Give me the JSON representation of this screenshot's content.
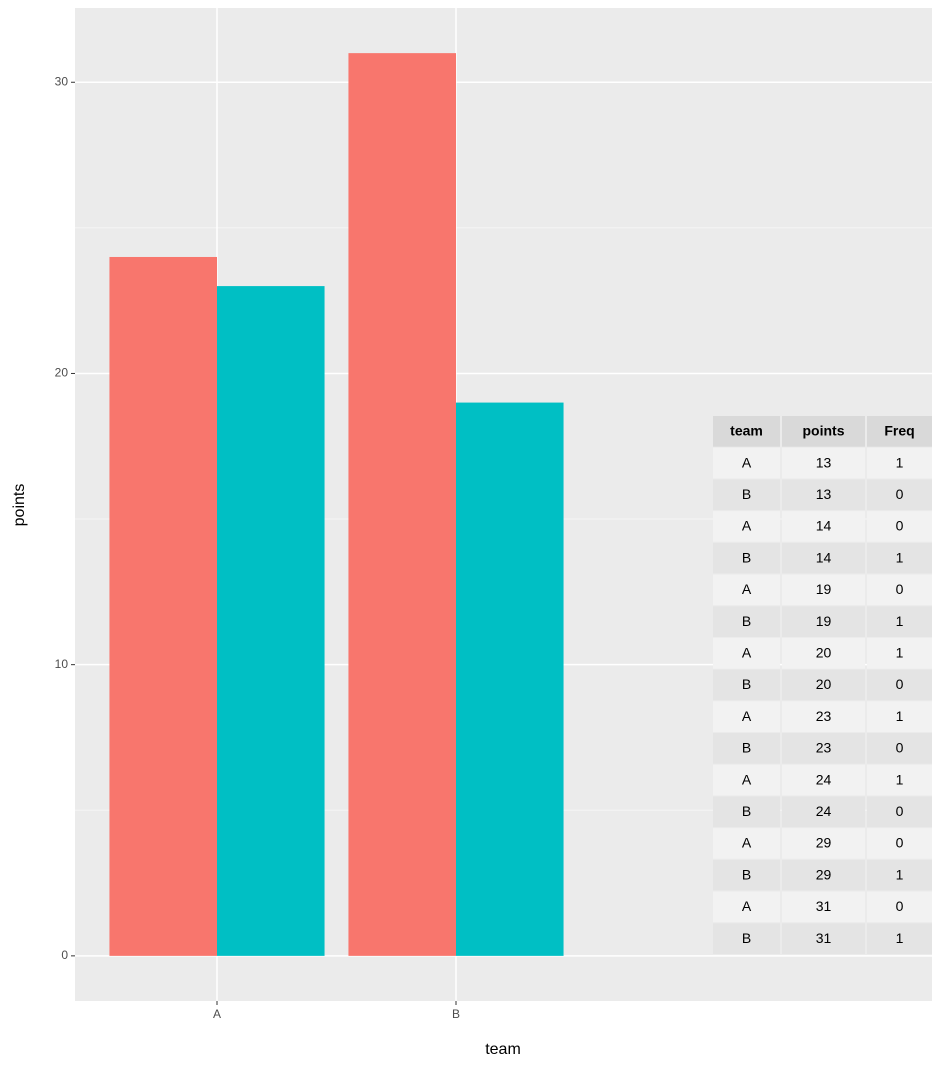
{
  "chart_data": {
    "type": "bar",
    "x_label": "team",
    "y_label": "points",
    "categories": [
      "A",
      "B"
    ],
    "series": [
      {
        "color": "#f8766d",
        "values": [
          24,
          31
        ]
      },
      {
        "color": "#00bfc4",
        "values": [
          23,
          19
        ]
      }
    ],
    "ylim": [
      -1.55,
      32.55
    ],
    "yticks": [
      0,
      10,
      20,
      30
    ],
    "grid": true,
    "table": {
      "columns": [
        "team",
        "points",
        "Freq"
      ],
      "rows": [
        [
          "A",
          13,
          1
        ],
        [
          "B",
          13,
          0
        ],
        [
          "A",
          14,
          0
        ],
        [
          "B",
          14,
          1
        ],
        [
          "A",
          19,
          0
        ],
        [
          "B",
          19,
          1
        ],
        [
          "A",
          20,
          1
        ],
        [
          "B",
          20,
          0
        ],
        [
          "A",
          23,
          1
        ],
        [
          "B",
          23,
          0
        ],
        [
          "A",
          24,
          1
        ],
        [
          "B",
          24,
          0
        ],
        [
          "A",
          29,
          0
        ],
        [
          "B",
          29,
          1
        ],
        [
          "A",
          31,
          0
        ],
        [
          "B",
          31,
          1
        ]
      ]
    }
  }
}
